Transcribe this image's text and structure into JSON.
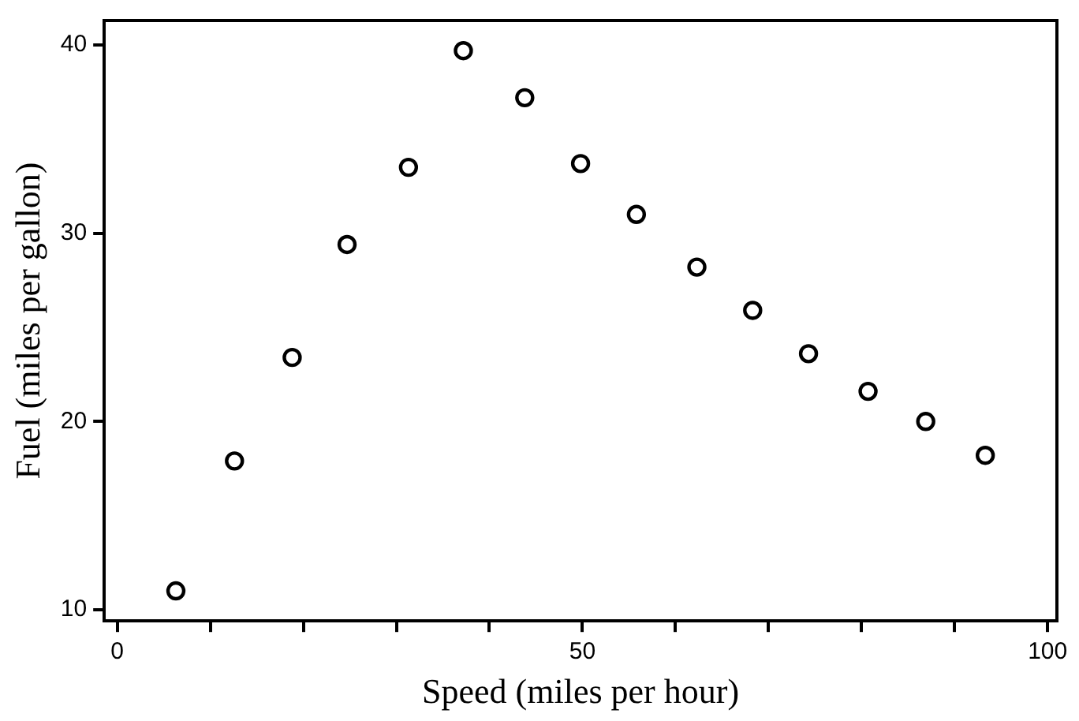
{
  "chart_data": {
    "type": "scatter",
    "xlabel": "Speed (miles per hour)",
    "ylabel": "Fuel (miles per gallon)",
    "x": [
      6.3,
      12.6,
      18.8,
      24.7,
      31.3,
      37.2,
      43.8,
      49.8,
      55.8,
      62.3,
      68.3,
      74.3,
      80.7,
      86.9,
      93.3
    ],
    "series": [
      {
        "color": "#000000",
        "values": [
          11.0,
          17.9,
          23.4,
          29.4,
          33.5,
          39.7,
          37.2,
          33.7,
          31.0,
          28.2,
          25.9,
          23.6,
          21.6,
          20.0,
          18.2
        ]
      }
    ],
    "xlim": [
      -1.4,
      101
    ],
    "ylim": [
      9.4,
      41.3
    ],
    "xticks": [
      0,
      {
        "value": 10,
        "label": null
      },
      {
        "value": 20,
        "label": null
      },
      {
        "value": 30,
        "label": null
      },
      {
        "value": 40,
        "label": null
      },
      50,
      {
        "value": 60,
        "label": null
      },
      {
        "value": 70,
        "label": null
      },
      {
        "value": 80,
        "label": null
      },
      {
        "value": 90,
        "label": null
      },
      100
    ],
    "yticks": [
      10,
      20,
      30,
      40
    ],
    "grid": false,
    "legend": false,
    "marker": "circle"
  }
}
